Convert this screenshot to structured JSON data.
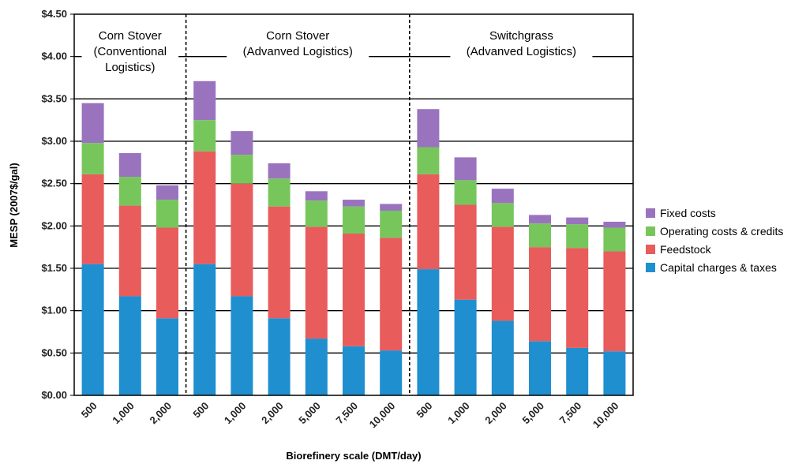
{
  "chart_data": {
    "type": "bar",
    "stacked": true,
    "xlabel": "Biorefinery scale (DMT/day)",
    "ylabel": "MESP (2007$/gal)",
    "ylim": [
      0,
      4.5
    ],
    "y_ticks": [
      "$0.00",
      "$0.50",
      "$1.00",
      "$1.50",
      "$2.00",
      "$2.50",
      "$3.00",
      "$3.50",
      "$4.00",
      "$4.50"
    ],
    "grid": true,
    "legend_position": "right",
    "categories": [
      "500",
      "1,000",
      "2,000",
      "500",
      "1,000",
      "2,000",
      "5,000",
      "7,500",
      "10,000",
      "500",
      "1,000",
      "2,000",
      "5,000",
      "7,500",
      "10,000"
    ],
    "groups": [
      {
        "label_lines": [
          "Corn Stover",
          "(Conventional",
          "Logistics)"
        ]
      },
      {
        "label_lines": [
          "Corn Stover",
          "(Advanved Logistics)"
        ]
      },
      {
        "label_lines": [
          "Switchgrass",
          "(Advanved Logistics)"
        ]
      }
    ],
    "series": [
      {
        "name": "Capital charges & taxes",
        "color": "#1f8fd0",
        "values": [
          1.55,
          1.17,
          0.91,
          1.55,
          1.17,
          0.91,
          0.67,
          0.58,
          0.53,
          1.49,
          1.13,
          0.88,
          0.64,
          0.56,
          0.52
        ]
      },
      {
        "name": "Feedstock",
        "color": "#e85c5c",
        "values": [
          1.06,
          1.07,
          1.07,
          1.33,
          1.33,
          1.32,
          1.32,
          1.33,
          1.33,
          1.12,
          1.12,
          1.11,
          1.11,
          1.18,
          1.18
        ]
      },
      {
        "name": "Operating costs & credits",
        "color": "#77c65c",
        "values": [
          0.37,
          0.34,
          0.33,
          0.37,
          0.34,
          0.33,
          0.31,
          0.32,
          0.32,
          0.32,
          0.29,
          0.28,
          0.28,
          0.28,
          0.28
        ]
      },
      {
        "name": "Fixed costs",
        "color": "#9a73bf",
        "values": [
          0.47,
          0.28,
          0.17,
          0.46,
          0.28,
          0.18,
          0.11,
          0.08,
          0.08,
          0.45,
          0.27,
          0.17,
          0.1,
          0.08,
          0.07
        ]
      }
    ]
  }
}
